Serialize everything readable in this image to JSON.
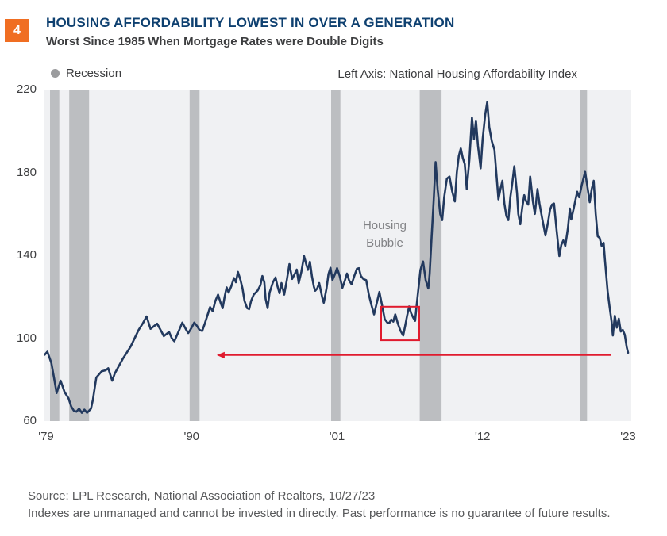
{
  "header": {
    "figure_number": "4",
    "title": "HOUSING AFFORDABILITY LOWEST IN OVER A GENERATION",
    "subtitle": "Worst Since 1985 When Mortgage Rates were Double Digits"
  },
  "legend": {
    "recession_label": "Recession",
    "left_axis_label": "Left Axis: National Housing Affordability Index"
  },
  "annotations": {
    "housing_bubble": {
      "line1": "Housing",
      "line2": "Bubble"
    }
  },
  "footer": {
    "source_line": "Source: LPL Research, National Association of Realtors, 10/27/23",
    "disclosure_line": "Indexes are unmanaged and cannot be invested in directly. Past performance is no guarantee of future results."
  },
  "colors": {
    "accent_orange": "#f06e22",
    "title_navy": "#0e4070",
    "line_navy": "#22395e",
    "plot_bg": "#f0f1f3",
    "recession_band": "#bcbec1",
    "annotation_red": "#e01b2e",
    "legend_dot_gray": "#9b9c9e"
  },
  "chart_data": {
    "type": "line",
    "title": "HOUSING AFFORDABILITY LOWEST IN OVER A GENERATION",
    "ylabel": "National Housing Affordability Index",
    "xlabel": "",
    "grid": false,
    "legend_position": "top",
    "xlim": [
      1978.82,
      2023.24
    ],
    "ylim": [
      60,
      220
    ],
    "yticks": [
      220,
      180,
      140,
      100,
      60
    ],
    "xticks": [
      {
        "year": 1979,
        "label": "'79"
      },
      {
        "year": 1990,
        "label": "'90"
      },
      {
        "year": 2001,
        "label": "'01"
      },
      {
        "year": 2012,
        "label": "'12"
      },
      {
        "year": 2023,
        "label": "'23"
      }
    ],
    "recession_bands": [
      [
        1979.3,
        1980.0
      ],
      [
        1980.75,
        1982.25
      ],
      [
        1989.85,
        1990.6
      ],
      [
        2000.55,
        2001.25
      ],
      [
        2007.25,
        2008.9
      ],
      [
        2019.4,
        2019.9
      ]
    ],
    "red_box": {
      "x0": 2004.33,
      "x1": 2007.21,
      "y_top": 115.2,
      "y_bottom": 99
    },
    "arrow": {
      "y": 91.8,
      "x_from": 2021.7,
      "x_tip": 1991.9
    },
    "housing_bubble_pos": {
      "x": 2004.6,
      "y": 150
    },
    "series": [
      {
        "name": "National Housing Affordability Index",
        "points": [
          [
            1978.9,
            92
          ],
          [
            1979.1,
            93.5
          ],
          [
            1979.4,
            88
          ],
          [
            1979.6,
            81
          ],
          [
            1979.8,
            73.5
          ],
          [
            1980.1,
            79.5
          ],
          [
            1980.4,
            74
          ],
          [
            1980.7,
            71
          ],
          [
            1980.9,
            67
          ],
          [
            1981.1,
            65
          ],
          [
            1981.3,
            64.5
          ],
          [
            1981.5,
            66
          ],
          [
            1981.7,
            64
          ],
          [
            1981.9,
            65.5
          ],
          [
            1982.1,
            64
          ],
          [
            1982.4,
            66
          ],
          [
            1982.55,
            70.5
          ],
          [
            1982.8,
            81
          ],
          [
            1983.2,
            84
          ],
          [
            1983.5,
            84.5
          ],
          [
            1983.7,
            85.5
          ],
          [
            1984.0,
            79.5
          ],
          [
            1984.2,
            83
          ],
          [
            1984.5,
            86.5
          ],
          [
            1984.8,
            90
          ],
          [
            1985.1,
            93
          ],
          [
            1985.4,
            96
          ],
          [
            1985.7,
            100
          ],
          [
            1986.0,
            104
          ],
          [
            1986.3,
            107
          ],
          [
            1986.6,
            110.5
          ],
          [
            1986.9,
            104.5
          ],
          [
            1987.2,
            106
          ],
          [
            1987.4,
            107
          ],
          [
            1987.7,
            103.5
          ],
          [
            1987.9,
            101
          ],
          [
            1988.3,
            103
          ],
          [
            1988.5,
            100
          ],
          [
            1988.7,
            98.5
          ],
          [
            1989.0,
            103
          ],
          [
            1989.3,
            107.5
          ],
          [
            1989.6,
            104
          ],
          [
            1989.75,
            102.5
          ],
          [
            1990.0,
            105
          ],
          [
            1990.2,
            107.5
          ],
          [
            1990.4,
            106
          ],
          [
            1990.6,
            104
          ],
          [
            1990.8,
            103.5
          ],
          [
            1991.0,
            107
          ],
          [
            1991.2,
            111
          ],
          [
            1991.4,
            115
          ],
          [
            1991.6,
            113
          ],
          [
            1991.8,
            118
          ],
          [
            1992.0,
            121
          ],
          [
            1992.2,
            117
          ],
          [
            1992.35,
            114.5
          ],
          [
            1992.5,
            120
          ],
          [
            1992.65,
            124.5
          ],
          [
            1992.8,
            122
          ],
          [
            1993.0,
            125
          ],
          [
            1993.2,
            129
          ],
          [
            1993.35,
            127
          ],
          [
            1993.5,
            132
          ],
          [
            1993.7,
            128
          ],
          [
            1993.85,
            124
          ],
          [
            1994.0,
            118
          ],
          [
            1994.2,
            114.5
          ],
          [
            1994.35,
            114
          ],
          [
            1994.5,
            118
          ],
          [
            1994.7,
            121
          ],
          [
            1995.0,
            123
          ],
          [
            1995.2,
            125.5
          ],
          [
            1995.35,
            130
          ],
          [
            1995.5,
            127
          ],
          [
            1995.6,
            119
          ],
          [
            1995.75,
            114.5
          ],
          [
            1995.9,
            122
          ],
          [
            1996.15,
            127
          ],
          [
            1996.35,
            129.3
          ],
          [
            1996.5,
            125
          ],
          [
            1996.65,
            121.7
          ],
          [
            1996.8,
            126.6
          ],
          [
            1997.0,
            121
          ],
          [
            1997.2,
            128
          ],
          [
            1997.4,
            135.8
          ],
          [
            1997.6,
            128.6
          ],
          [
            1997.8,
            131
          ],
          [
            1997.95,
            133.1
          ],
          [
            1998.1,
            126.6
          ],
          [
            1998.3,
            132
          ],
          [
            1998.5,
            139.6
          ],
          [
            1998.7,
            135
          ],
          [
            1998.8,
            133
          ],
          [
            1998.95,
            136.9
          ],
          [
            1999.1,
            130
          ],
          [
            1999.25,
            124.8
          ],
          [
            1999.35,
            122.9
          ],
          [
            1999.5,
            124
          ],
          [
            1999.65,
            126.6
          ],
          [
            1999.8,
            122
          ],
          [
            1999.9,
            119
          ],
          [
            2000.0,
            117.1
          ],
          [
            2000.2,
            124
          ],
          [
            2000.35,
            131
          ],
          [
            2000.5,
            134
          ],
          [
            2000.65,
            128.1
          ],
          [
            2000.85,
            131
          ],
          [
            2001.0,
            133.8
          ],
          [
            2001.2,
            130
          ],
          [
            2001.4,
            124.3
          ],
          [
            2001.6,
            128
          ],
          [
            2001.75,
            131.2
          ],
          [
            2001.9,
            128
          ],
          [
            2002.1,
            126
          ],
          [
            2002.3,
            130
          ],
          [
            2002.5,
            133.5
          ],
          [
            2002.65,
            133.8
          ],
          [
            2002.8,
            130
          ],
          [
            2003.0,
            128.5
          ],
          [
            2003.2,
            128
          ],
          [
            2003.4,
            121
          ],
          [
            2003.6,
            116
          ],
          [
            2003.8,
            111.5
          ],
          [
            2004.0,
            117
          ],
          [
            2004.2,
            122.3
          ],
          [
            2004.4,
            116
          ],
          [
            2004.6,
            109.2
          ],
          [
            2004.8,
            107.5
          ],
          [
            2004.95,
            107.3
          ],
          [
            2005.1,
            109
          ],
          [
            2005.25,
            108
          ],
          [
            2005.4,
            111.5
          ],
          [
            2005.6,
            107
          ],
          [
            2005.8,
            103.5
          ],
          [
            2006.0,
            101.3
          ],
          [
            2006.15,
            106
          ],
          [
            2006.3,
            111
          ],
          [
            2006.45,
            115.3
          ],
          [
            2006.6,
            112
          ],
          [
            2006.75,
            110
          ],
          [
            2006.9,
            108.4
          ],
          [
            2007.0,
            115
          ],
          [
            2007.15,
            124
          ],
          [
            2007.3,
            133
          ],
          [
            2007.5,
            137
          ],
          [
            2007.7,
            128
          ],
          [
            2007.9,
            124
          ],
          [
            2008.0,
            131
          ],
          [
            2008.15,
            149
          ],
          [
            2008.3,
            166
          ],
          [
            2008.45,
            185
          ],
          [
            2008.6,
            172
          ],
          [
            2008.8,
            160
          ],
          [
            2008.95,
            157
          ],
          [
            2009.1,
            168
          ],
          [
            2009.3,
            177
          ],
          [
            2009.5,
            178
          ],
          [
            2009.7,
            171
          ],
          [
            2009.9,
            166
          ],
          [
            2010.05,
            180
          ],
          [
            2010.2,
            188
          ],
          [
            2010.35,
            191.6
          ],
          [
            2010.5,
            187
          ],
          [
            2010.65,
            184
          ],
          [
            2010.8,
            172
          ],
          [
            2011.0,
            186
          ],
          [
            2011.2,
            206.5
          ],
          [
            2011.35,
            196
          ],
          [
            2011.5,
            205
          ],
          [
            2011.65,
            193
          ],
          [
            2011.85,
            182
          ],
          [
            2012.0,
            196
          ],
          [
            2012.2,
            208
          ],
          [
            2012.35,
            214
          ],
          [
            2012.5,
            202
          ],
          [
            2012.7,
            195
          ],
          [
            2012.9,
            191
          ],
          [
            2013.05,
            179
          ],
          [
            2013.2,
            167
          ],
          [
            2013.35,
            172
          ],
          [
            2013.5,
            176
          ],
          [
            2013.65,
            165
          ],
          [
            2013.8,
            159
          ],
          [
            2013.95,
            157
          ],
          [
            2014.1,
            168
          ],
          [
            2014.25,
            175
          ],
          [
            2014.4,
            183
          ],
          [
            2014.6,
            170
          ],
          [
            2014.7,
            160
          ],
          [
            2014.85,
            155
          ],
          [
            2015.0,
            163
          ],
          [
            2015.15,
            169
          ],
          [
            2015.3,
            166
          ],
          [
            2015.45,
            164.5
          ],
          [
            2015.6,
            178
          ],
          [
            2015.8,
            166
          ],
          [
            2015.95,
            160
          ],
          [
            2016.15,
            172
          ],
          [
            2016.3,
            165
          ],
          [
            2016.5,
            158
          ],
          [
            2016.75,
            149.6
          ],
          [
            2016.95,
            156
          ],
          [
            2017.1,
            162
          ],
          [
            2017.25,
            164.5
          ],
          [
            2017.4,
            165
          ],
          [
            2017.6,
            152
          ],
          [
            2017.8,
            139.6
          ],
          [
            2017.95,
            145
          ],
          [
            2018.1,
            147.2
          ],
          [
            2018.25,
            144.5
          ],
          [
            2018.45,
            153
          ],
          [
            2018.6,
            162.6
          ],
          [
            2018.7,
            157.3
          ],
          [
            2018.9,
            163
          ],
          [
            2019.15,
            170.7
          ],
          [
            2019.3,
            168
          ],
          [
            2019.5,
            174
          ],
          [
            2019.75,
            180.3
          ],
          [
            2019.95,
            172
          ],
          [
            2020.1,
            165.6
          ],
          [
            2020.25,
            172
          ],
          [
            2020.4,
            176
          ],
          [
            2020.55,
            160
          ],
          [
            2020.7,
            149.2
          ],
          [
            2020.85,
            148.4
          ],
          [
            2021.0,
            144.5
          ],
          [
            2021.15,
            146
          ],
          [
            2021.25,
            138
          ],
          [
            2021.45,
            122.7
          ],
          [
            2021.6,
            115.1
          ],
          [
            2021.75,
            108
          ],
          [
            2021.85,
            101.3
          ],
          [
            2022.0,
            110.8
          ],
          [
            2022.15,
            105.1
          ],
          [
            2022.3,
            109.4
          ],
          [
            2022.45,
            103.2
          ],
          [
            2022.6,
            104
          ],
          [
            2022.75,
            101.7
          ],
          [
            2022.9,
            95.6
          ],
          [
            2023.0,
            93
          ]
        ]
      }
    ]
  }
}
